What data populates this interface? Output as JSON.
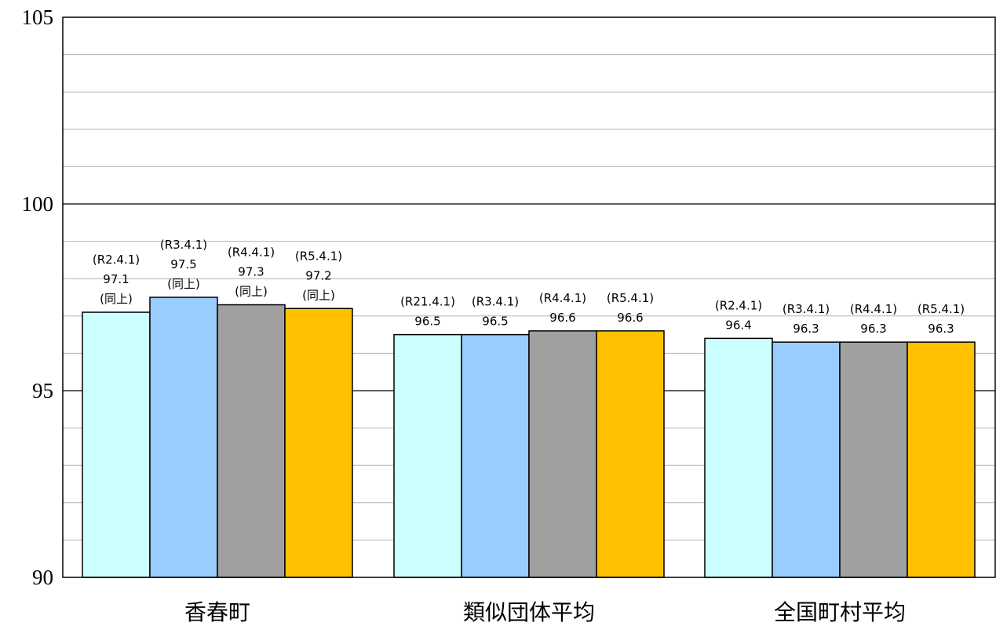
{
  "chart_data": {
    "type": "bar",
    "categories": [
      "香春町",
      "類似団体平均",
      "全国町村平均"
    ],
    "series": [
      {
        "color": "#ccffff",
        "values": [
          97.1,
          96.5,
          96.4
        ]
      },
      {
        "color": "#99ccff",
        "values": [
          97.5,
          96.5,
          96.3
        ]
      },
      {
        "color": "#a0a0a0",
        "values": [
          97.3,
          96.6,
          96.3
        ]
      },
      {
        "color": "#ffc000",
        "values": [
          97.2,
          96.6,
          96.3
        ]
      }
    ],
    "data_labels": [
      [
        [
          "(R2.4.1)",
          "97.1",
          "(同上)"
        ],
        [
          "(R21.4.1)",
          "96.5"
        ],
        [
          "(R2.4.1)",
          "96.4"
        ]
      ],
      [
        [
          "(R3.4.1)",
          "97.5",
          "(同上)"
        ],
        [
          "(R3.4.1)",
          "96.5"
        ],
        [
          "(R3.4.1)",
          "96.3"
        ]
      ],
      [
        [
          "(R4.4.1)",
          "97.3",
          "(同上)"
        ],
        [
          "(R4.4.1)",
          "96.6"
        ],
        [
          "(R4.4.1)",
          "96.3"
        ]
      ],
      [
        [
          "(R5.4.1)",
          "97.2",
          "(同上)"
        ],
        [
          "(R5.4.1)",
          "96.6"
        ],
        [
          "(R5.4.1)",
          "96.3"
        ]
      ]
    ],
    "ylim": [
      90,
      105
    ],
    "yticks": [
      "90",
      "95",
      "100",
      "105"
    ],
    "grid": true,
    "title": "",
    "xlabel": "",
    "ylabel": ""
  }
}
